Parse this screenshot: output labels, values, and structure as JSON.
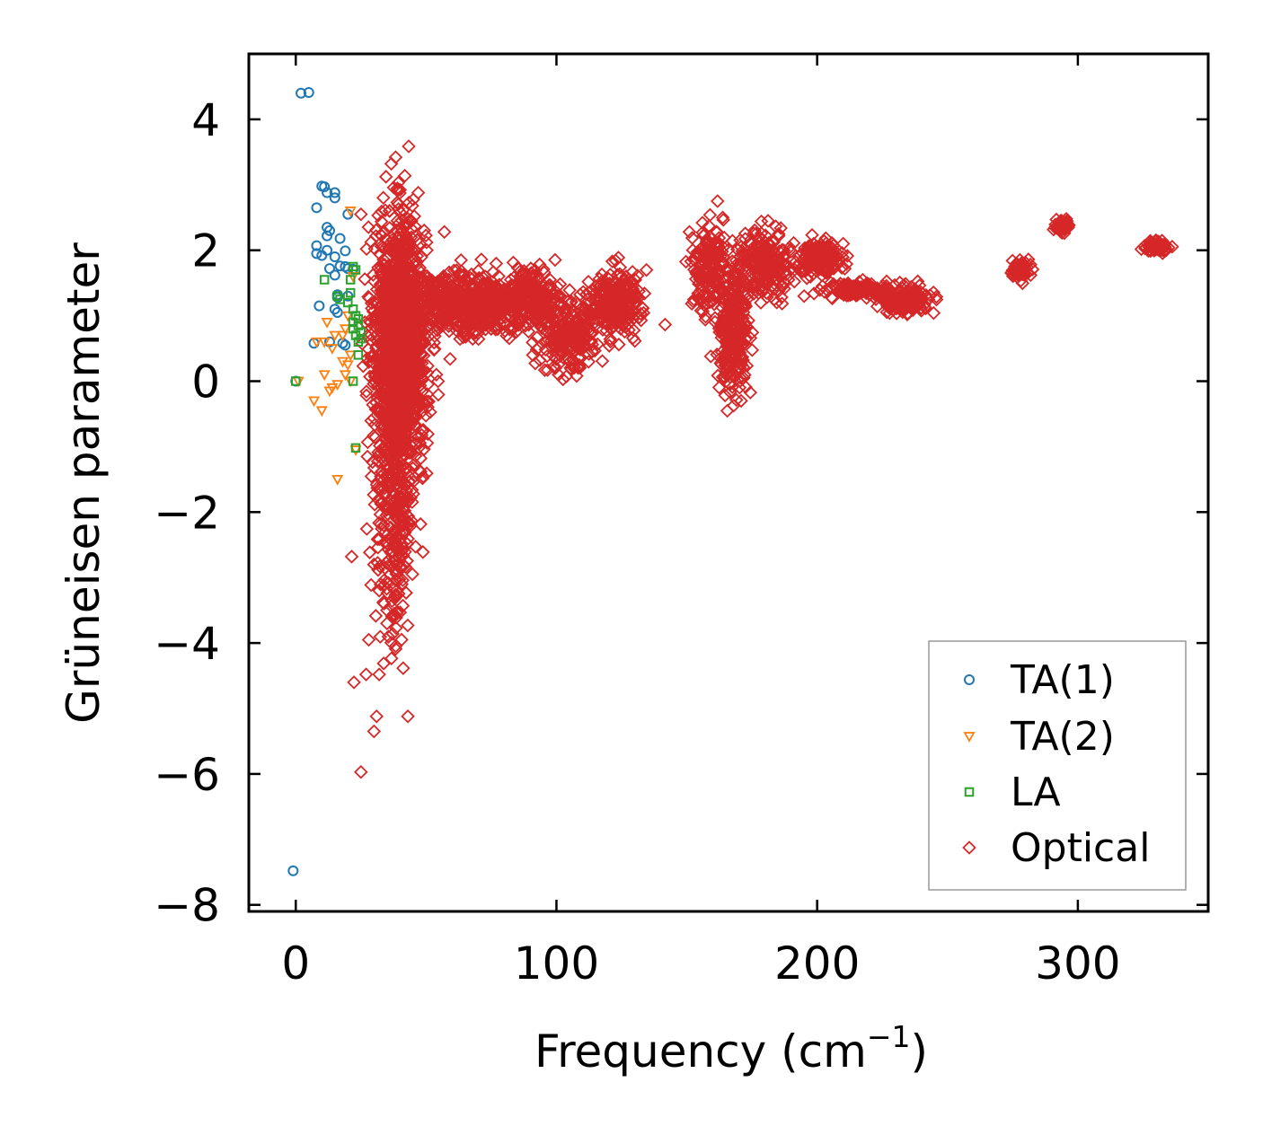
{
  "chart_data": {
    "type": "scatter",
    "title": "",
    "xlabel": "Frequency (cm",
    "xlabel_exponent": "−1",
    "xlabel_close": ")",
    "ylabel": "Grüneisen parameter",
    "xlim": [
      -18,
      350
    ],
    "ylim": [
      -8.1,
      5.0
    ],
    "xticks": [
      0,
      100,
      200,
      300
    ],
    "xtick_labels": [
      "0",
      "100",
      "200",
      "300"
    ],
    "yticks": [
      4,
      2,
      0,
      -2,
      -4,
      -6,
      -8
    ],
    "ytick_labels": [
      "4",
      "2",
      "0",
      "−2",
      "−4",
      "−6",
      "−8"
    ],
    "grid": false,
    "legend_position": "bottom-right",
    "series": [
      {
        "name": "TA(1)",
        "marker": "circle",
        "color": "#1f77b4",
        "points": [
          [
            2,
            4.4
          ],
          [
            5,
            4.41
          ],
          [
            10,
            2.98
          ],
          [
            11,
            2.97
          ],
          [
            12,
            2.88
          ],
          [
            15,
            2.88
          ],
          [
            15,
            2.8
          ],
          [
            8,
            2.65
          ],
          [
            20,
            2.55
          ],
          [
            12,
            2.35
          ],
          [
            13,
            2.3
          ],
          [
            12,
            2.22
          ],
          [
            17,
            2.18
          ],
          [
            8,
            2.07
          ],
          [
            12,
            2.0
          ],
          [
            19,
            1.99
          ],
          [
            8,
            1.95
          ],
          [
            10,
            1.92
          ],
          [
            15,
            1.9
          ],
          [
            17,
            1.76
          ],
          [
            19,
            1.75
          ],
          [
            13,
            1.72
          ],
          [
            20,
            1.72
          ],
          [
            22,
            1.71
          ],
          [
            15,
            1.62
          ],
          [
            16,
            1.32
          ],
          [
            16,
            1.28
          ],
          [
            20,
            1.3
          ],
          [
            15,
            1.1
          ],
          [
            16,
            1.05
          ],
          [
            9,
            1.15
          ],
          [
            7,
            0.58
          ],
          [
            13,
            0.6
          ],
          [
            18,
            0.58
          ],
          [
            19,
            0.55
          ],
          [
            0,
            0.0
          ],
          [
            -1,
            -7.48
          ]
        ]
      },
      {
        "name": "TA(2)",
        "marker": "triangle-down",
        "color": "#ff7f0e",
        "points": [
          [
            21,
            2.6
          ],
          [
            22,
            1.6
          ],
          [
            20,
            1.0
          ],
          [
            19,
            0.8
          ],
          [
            12,
            0.9
          ],
          [
            15,
            0.7
          ],
          [
            18,
            0.7
          ],
          [
            11,
            0.6
          ],
          [
            8,
            0.6
          ],
          [
            14,
            0.5
          ],
          [
            21,
            0.4
          ],
          [
            18,
            0.3
          ],
          [
            20,
            0.25
          ],
          [
            19,
            0.1
          ],
          [
            11,
            0.1
          ],
          [
            14,
            -0.1
          ],
          [
            16,
            -0.05
          ],
          [
            13,
            -0.15
          ],
          [
            7,
            -0.3
          ],
          [
            10,
            -0.45
          ],
          [
            1,
            0.0
          ],
          [
            21,
            0.0
          ],
          [
            16,
            -1.5
          ],
          [
            23,
            -1.05
          ]
        ]
      },
      {
        "name": "LA",
        "marker": "square",
        "color": "#2ca02c",
        "points": [
          [
            11,
            1.55
          ],
          [
            22,
            1.75
          ],
          [
            23,
            1.7
          ],
          [
            21,
            1.55
          ],
          [
            16,
            1.3
          ],
          [
            17,
            1.25
          ],
          [
            21,
            1.35
          ],
          [
            20,
            1.2
          ],
          [
            22,
            1.1
          ],
          [
            23,
            1.0
          ],
          [
            24,
            0.95
          ],
          [
            22,
            0.9
          ],
          [
            24,
            0.85
          ],
          [
            22,
            0.8
          ],
          [
            25,
            0.75
          ],
          [
            23,
            0.7
          ],
          [
            24,
            0.6
          ],
          [
            25,
            0.65
          ],
          [
            24,
            0.4
          ],
          [
            22,
            0.0
          ],
          [
            23,
            -1.02
          ],
          [
            0,
            0.0
          ]
        ]
      },
      {
        "name": "Optical",
        "marker": "diamond",
        "color": "#d62728",
        "generated": true,
        "clusters": [
          {
            "count": 1400,
            "x_mean": 40,
            "x_sd": 5,
            "y_mean": 0.6,
            "y_sd": 0.9
          },
          {
            "count": 350,
            "x_mean": 38,
            "x_sd": 4,
            "y_mean": -1.8,
            "y_sd": 1.0
          },
          {
            "count": 500,
            "x_mean": 65,
            "x_sd": 12,
            "y_mean": 1.15,
            "y_sd": 0.25
          },
          {
            "count": 220,
            "x_mean": 90,
            "x_sd": 5,
            "y_mean": 1.3,
            "y_sd": 0.2
          },
          {
            "count": 240,
            "x_mean": 105,
            "x_sd": 6,
            "y_mean": 0.75,
            "y_sd": 0.3
          },
          {
            "count": 250,
            "x_mean": 123,
            "x_sd": 5,
            "y_mean": 1.2,
            "y_sd": 0.25
          },
          {
            "count": 160,
            "x_mean": 158,
            "x_sd": 3,
            "y_mean": 1.7,
            "y_sd": 0.35
          },
          {
            "count": 280,
            "x_mean": 168,
            "x_sd": 3,
            "y_mean": 0.8,
            "y_sd": 0.45
          },
          {
            "count": 200,
            "x_mean": 180,
            "x_sd": 5,
            "y_mean": 1.8,
            "y_sd": 0.25
          },
          {
            "count": 170,
            "x_mean": 201,
            "x_sd": 4,
            "y_mean": 1.9,
            "y_sd": 0.12
          },
          {
            "count": 140,
            "x_mean": 215,
            "x_sd": 6,
            "y_mean": 1.4,
            "y_sd": 0.05
          },
          {
            "count": 200,
            "x_mean": 233,
            "x_sd": 5,
            "y_mean": 1.25,
            "y_sd": 0.1
          },
          {
            "count": 60,
            "x_mean": 278,
            "x_sd": 2,
            "y_mean": 1.7,
            "y_sd": 0.06
          },
          {
            "count": 50,
            "x_mean": 294,
            "x_sd": 1.5,
            "y_mean": 2.38,
            "y_sd": 0.05
          },
          {
            "count": 70,
            "x_mean": 330,
            "x_sd": 2,
            "y_mean": 2.05,
            "y_sd": 0.04
          }
        ],
        "outliers": [
          [
            25,
            2.55
          ],
          [
            36,
            2.6
          ],
          [
            39,
            2.45
          ],
          [
            43,
            2.48
          ],
          [
            57,
            2.28
          ],
          [
            151,
            2.28
          ],
          [
            195,
            1.3
          ],
          [
            189,
            1.55
          ],
          [
            30,
            -2.8
          ],
          [
            32,
            -3.2
          ],
          [
            35,
            -3.5
          ],
          [
            37,
            -3.6
          ],
          [
            28,
            -3.95
          ],
          [
            27,
            -4.48
          ],
          [
            32,
            -4.48
          ],
          [
            31,
            -5.12
          ],
          [
            43,
            -5.12
          ],
          [
            30,
            -5.35
          ],
          [
            25,
            -5.97
          ],
          [
            35,
            -3.7
          ]
        ]
      }
    ]
  }
}
